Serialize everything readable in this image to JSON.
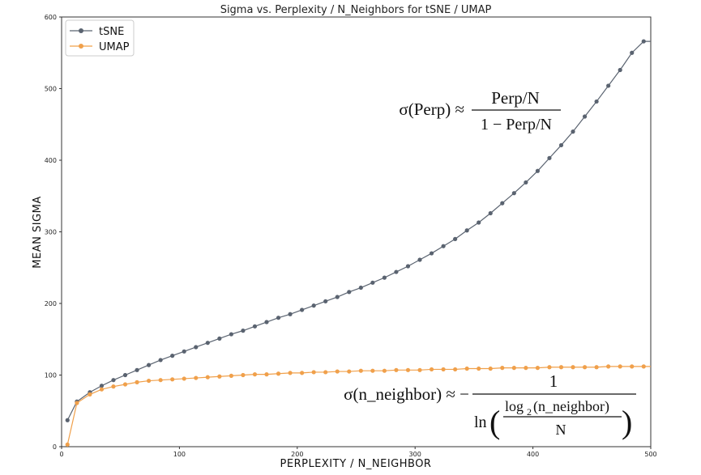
{
  "chart_data": {
    "type": "line",
    "title": "Sigma vs. Perplexity / N_Neighbors for tSNE / UMAP",
    "xlabel": "PERPLEXITY / N_NEIGHBOR",
    "ylabel": "MEAN SIGMA",
    "xlim": [
      0,
      500
    ],
    "ylim": [
      0,
      600
    ],
    "xticks": [
      0,
      100,
      200,
      300,
      400,
      500
    ],
    "yticks": [
      0,
      100,
      200,
      300,
      400,
      500,
      600
    ],
    "grid": false,
    "legend_position": "top-left",
    "series": [
      {
        "name": "tSNE",
        "color": "#5a6370",
        "x": [
          5,
          13,
          24,
          34,
          44,
          54,
          64,
          74,
          84,
          94,
          104,
          114,
          124,
          134,
          144,
          154,
          164,
          174,
          184,
          194,
          204,
          214,
          224,
          234,
          244,
          254,
          264,
          274,
          284,
          294,
          304,
          314,
          324,
          334,
          344,
          354,
          364,
          374,
          384,
          394,
          404,
          414,
          424,
          434,
          444,
          454,
          464,
          474,
          484,
          494,
          500
        ],
        "y": [
          37,
          63,
          76,
          85,
          93,
          100,
          107,
          114,
          121,
          127,
          133,
          139,
          145,
          151,
          157,
          162,
          168,
          174,
          180,
          185,
          191,
          197,
          203,
          209,
          216,
          222,
          229,
          236,
          244,
          252,
          261,
          270,
          280,
          290,
          302,
          313,
          326,
          340,
          354,
          369,
          385,
          403,
          421,
          440,
          461,
          482,
          504,
          526,
          550,
          566,
          566
        ]
      },
      {
        "name": "UMAP",
        "color": "#f0a04b",
        "x": [
          5,
          13,
          24,
          34,
          44,
          54,
          64,
          74,
          84,
          94,
          104,
          114,
          124,
          134,
          144,
          154,
          164,
          174,
          184,
          194,
          204,
          214,
          224,
          234,
          244,
          254,
          264,
          274,
          284,
          294,
          304,
          314,
          324,
          334,
          344,
          354,
          364,
          374,
          384,
          394,
          404,
          414,
          424,
          434,
          444,
          454,
          464,
          474,
          484,
          494,
          500
        ],
        "y": [
          3,
          61,
          73,
          80,
          84,
          87,
          90,
          92,
          93,
          94,
          95,
          96,
          97,
          98,
          99,
          100,
          101,
          101,
          102,
          103,
          103,
          104,
          104,
          105,
          105,
          106,
          106,
          106,
          107,
          107,
          107,
          108,
          108,
          108,
          109,
          109,
          109,
          110,
          110,
          110,
          110,
          111,
          111,
          111,
          111,
          111,
          112,
          112,
          112,
          112,
          112
        ]
      }
    ],
    "annotations": [
      {
        "id": "tsne_formula",
        "text": "σ(Perp) ≈ (Perp/N) / (1 − Perp/N)"
      },
      {
        "id": "umap_formula",
        "text": "σ(n_neighbor) ≈ −1 / ln(log2(n_neighbor)/N)"
      }
    ]
  },
  "equations": {
    "tsne": {
      "lhs": "σ(Perp) ≈",
      "numerator": "Perp/N",
      "denominator": "1 − Perp/N"
    },
    "umap": {
      "lhs": "σ(n_neighbor) ≈ −",
      "numerator": "1",
      "ln": "ln",
      "log_base": "2",
      "inner_numerator": "log",
      "inner_arg": "(n_neighbor)",
      "inner_denominator": "N"
    }
  }
}
